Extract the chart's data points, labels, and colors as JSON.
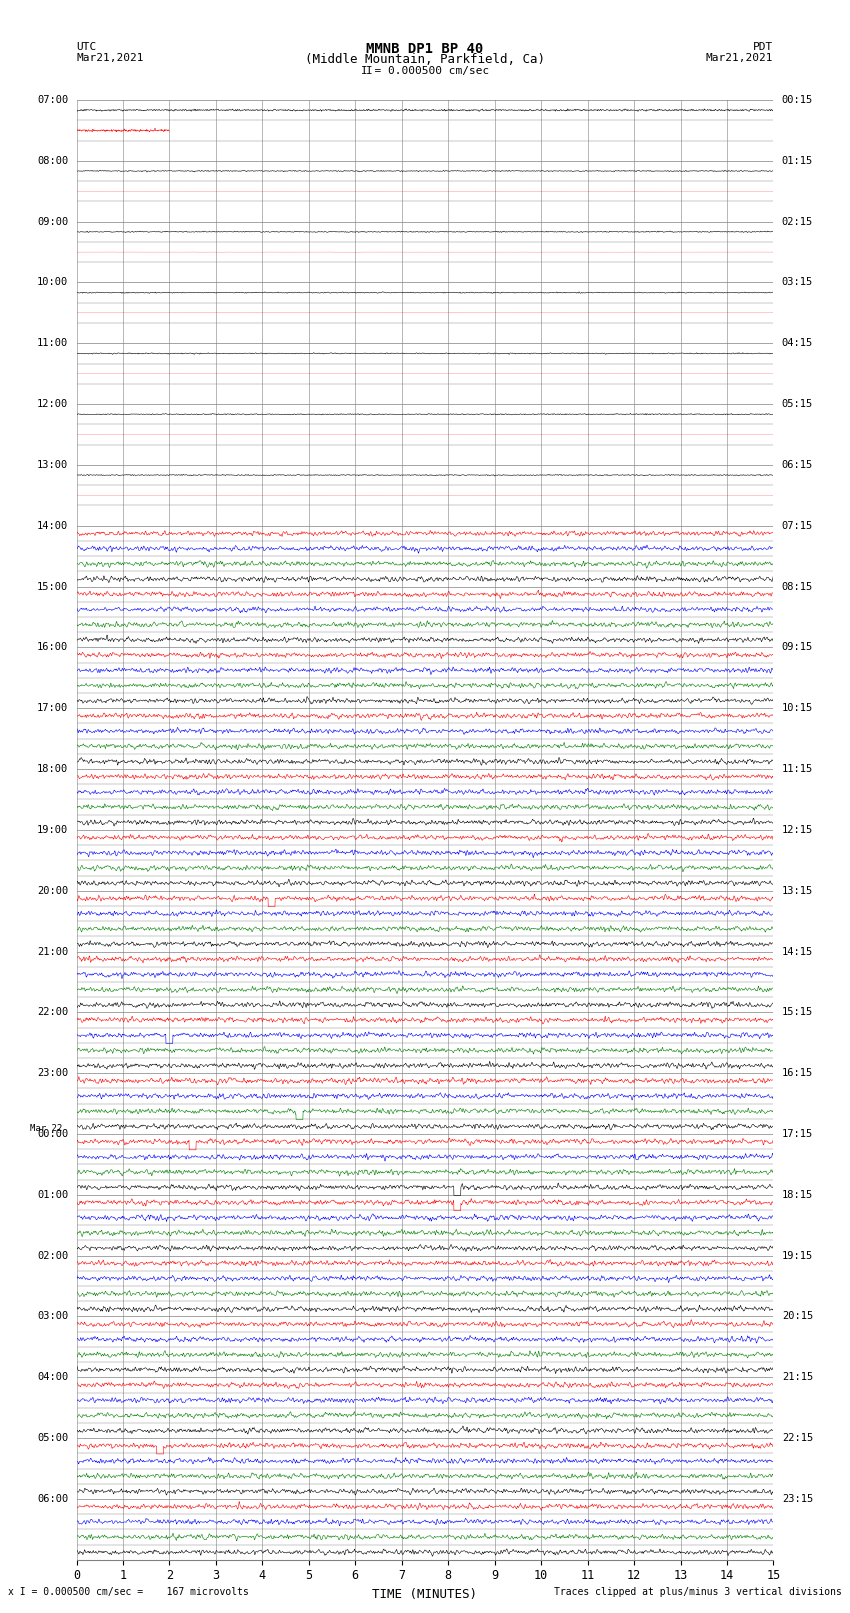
{
  "title_line1": "MMNB DP1 BP 40",
  "title_line2": "(Middle Mountain, Parkfield, Ca)",
  "scale_label": "I = 0.000500 cm/sec",
  "utc_label": "UTC",
  "utc_date": "Mar21,2021",
  "pdt_label": "PDT",
  "pdt_date": "Mar21,2021",
  "xlabel": "TIME (MINUTES)",
  "bottom_left": "x I = 0.000500 cm/sec =    167 microvolts",
  "bottom_right": "Traces clipped at plus/minus 3 vertical divisions",
  "xlim": [
    0,
    15
  ],
  "xticks": [
    0,
    1,
    2,
    3,
    4,
    5,
    6,
    7,
    8,
    9,
    10,
    11,
    12,
    13,
    14,
    15
  ],
  "utc_times_left": [
    "07:00",
    "08:00",
    "09:00",
    "10:00",
    "11:00",
    "12:00",
    "13:00",
    "14:00",
    "15:00",
    "16:00",
    "17:00",
    "18:00",
    "19:00",
    "20:00",
    "21:00",
    "22:00",
    "23:00",
    "00:00",
    "01:00",
    "02:00",
    "03:00",
    "04:00",
    "05:00",
    "06:00"
  ],
  "pdt_times_right": [
    "00:15",
    "01:15",
    "02:15",
    "03:15",
    "04:15",
    "05:15",
    "06:15",
    "07:15",
    "08:15",
    "09:15",
    "10:15",
    "11:15",
    "12:15",
    "13:15",
    "14:15",
    "15:15",
    "16:15",
    "17:15",
    "18:15",
    "19:15",
    "20:15",
    "21:15",
    "22:15",
    "23:15"
  ],
  "n_rows": 24,
  "colors_late": [
    "#ff0000",
    "#0000ff",
    "#008000",
    "#000000"
  ],
  "background_color": "#ffffff",
  "grid_color": "#808080",
  "amp_quiet": 0.008,
  "amp_active": 0.045,
  "lw_quiet": 0.4,
  "lw_active": 0.4
}
